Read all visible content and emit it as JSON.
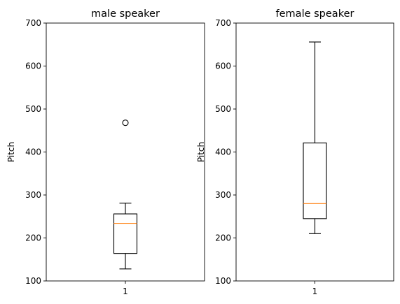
{
  "chart_data": [
    {
      "type": "box",
      "title": "male speaker",
      "xlabel": "",
      "ylabel": "Pitch",
      "ylim": [
        100,
        700
      ],
      "yticks": [
        100,
        200,
        300,
        400,
        500,
        600,
        700
      ],
      "categories": [
        "1"
      ],
      "boxes": [
        {
          "category": "1",
          "whisker_low": 128,
          "q1": 164,
          "median": 234,
          "q3": 256,
          "whisker_high": 281,
          "outliers": [
            468
          ]
        }
      ],
      "grid": false
    },
    {
      "type": "box",
      "title": "female speaker",
      "xlabel": "",
      "ylabel": "Pitch",
      "ylim": [
        100,
        700
      ],
      "yticks": [
        100,
        200,
        300,
        400,
        500,
        600,
        700
      ],
      "categories": [
        "1"
      ],
      "boxes": [
        {
          "category": "1",
          "whisker_low": 210,
          "q1": 245,
          "median": 280,
          "q3": 421,
          "whisker_high": 656,
          "outliers": []
        }
      ],
      "grid": false
    }
  ],
  "colors": {
    "box": "#000000",
    "median": "#ff7f0e",
    "background": "#ffffff"
  }
}
